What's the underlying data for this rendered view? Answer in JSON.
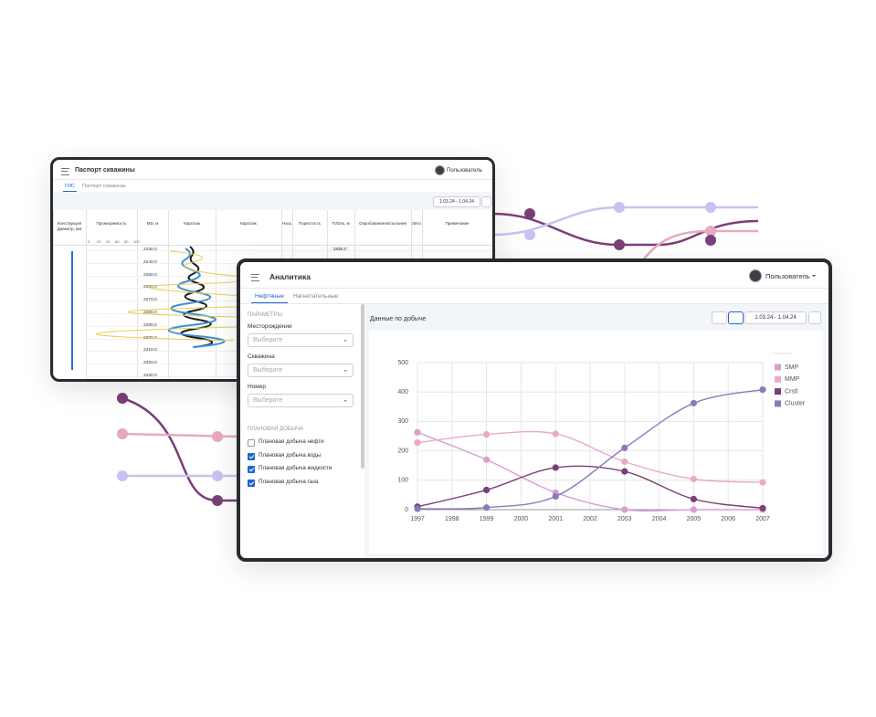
{
  "back_window": {
    "title": "Паспорт скважины",
    "user": "Пользователь",
    "tabs": [
      "ГИС",
      "Паспорт скважины"
    ],
    "date_range": "1.03.24 - 1.04.24",
    "columns": [
      "Конструкция Диаметр, мм",
      "Проницаемость",
      "MD, м",
      "Каротаж",
      "Каротаж",
      "Насыщение",
      "Пористость",
      "TVDss, м",
      "Опробование/испытания",
      "Литология",
      "Примечание"
    ],
    "scale": [
      "0",
      "20",
      "40",
      "60",
      "80",
      "100"
    ],
    "tvdss_value": "1836.4",
    "depths": [
      "2230.0",
      "2240.0",
      "2250.0",
      "2260.0",
      "2270.0",
      "2280.0",
      "2290.0",
      "2300.0",
      "2310.0",
      "2320.0",
      "2330.0"
    ]
  },
  "front_window": {
    "title": "Аналитика",
    "user": "Пользователь",
    "tabs": [
      "Нефтяные",
      "Нагнетательные"
    ],
    "params_title": "ПАРАМЕТРЫ",
    "fields": [
      {
        "label": "Месторождение",
        "placeholder": "Выберите"
      },
      {
        "label": "Скважина",
        "placeholder": "Выберите"
      },
      {
        "label": "Номер",
        "placeholder": "Выберите"
      }
    ],
    "plan_title": "ПЛАНОВАЯ ДОБЫЧА",
    "checkboxes": [
      {
        "label": "Плановая добыча нефти",
        "checked": false
      },
      {
        "label": "Плановая добыча воды",
        "checked": true
      },
      {
        "label": "Плановая добыча жидкости",
        "checked": true
      },
      {
        "label": "Плановая добыча газа",
        "checked": true
      }
    ],
    "date_range": "1.03.24 - 1.04.24"
  },
  "chart_data": {
    "type": "line",
    "title": "Данные по добыче",
    "x": [
      1997,
      1999,
      2001,
      2003,
      2005,
      2007
    ],
    "series": [
      {
        "name": "SMP",
        "color": "#d69fd3",
        "values": [
          263,
          170,
          58,
          0,
          0,
          0
        ]
      },
      {
        "name": "MMP",
        "color": "#eaaac4",
        "values": [
          228,
          256,
          258,
          163,
          104,
          93
        ]
      },
      {
        "name": "Crstl",
        "color": "#7a3f78",
        "values": [
          10,
          67,
          143,
          130,
          36,
          5
        ]
      },
      {
        "name": "Cluster",
        "color": "#8a7bbb",
        "values": [
          3,
          7,
          45,
          210,
          362,
          408
        ]
      }
    ],
    "xlim": [
      1997,
      2007
    ],
    "xticks": [
      1997,
      1998,
      1999,
      2000,
      2001,
      2002,
      2003,
      2004,
      2005,
      2006,
      2007
    ],
    "ylim": [
      0,
      500
    ],
    "yticks": [
      0,
      100,
      200,
      300,
      400,
      500
    ],
    "grid": true,
    "legend": "right"
  }
}
